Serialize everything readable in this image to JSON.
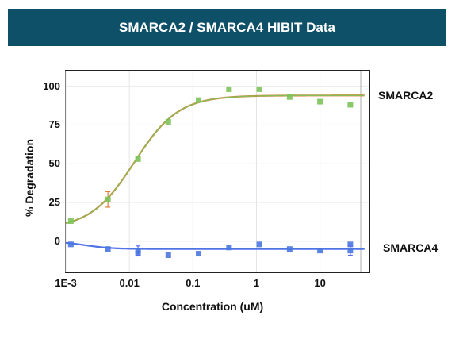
{
  "header": {
    "title": "SMARCA2 / SMARCA4 HIBIT Data",
    "bg_color": "#0e5068"
  },
  "chart_data": {
    "type": "scatter",
    "title": "SMARCA2 / SMARCA4 HIBIT Data",
    "xlabel": "Concentration (uM)",
    "ylabel": "% Degradation",
    "xscale": "log",
    "xlim": [
      0.001,
      60
    ],
    "ylim": [
      -20,
      110
    ],
    "x_ticks": [
      {
        "value": 0.001,
        "label": "1E-3"
      },
      {
        "value": 0.01,
        "label": "0.01"
      },
      {
        "value": 0.1,
        "label": "0.1"
      },
      {
        "value": 1,
        "label": "1"
      },
      {
        "value": 10,
        "label": "10"
      }
    ],
    "y_ticks": [
      {
        "value": 0,
        "label": "0"
      },
      {
        "value": 25,
        "label": "25"
      },
      {
        "value": 50,
        "label": "50"
      },
      {
        "value": 75,
        "label": "75"
      },
      {
        "value": 100,
        "label": "100"
      }
    ],
    "grid": true,
    "series": [
      {
        "name": "SMARCA2",
        "color": "#7cc35a",
        "fit_color": "#e07b39",
        "points": [
          {
            "x": 0.0012,
            "y": 13
          },
          {
            "x": 0.0046,
            "y": 27,
            "err": 5
          },
          {
            "x": 0.0137,
            "y": 53
          },
          {
            "x": 0.041,
            "y": 77
          },
          {
            "x": 0.123,
            "y": 91
          },
          {
            "x": 0.37,
            "y": 98
          },
          {
            "x": 1.11,
            "y": 98
          },
          {
            "x": 3.33,
            "y": 93
          },
          {
            "x": 10,
            "y": 90
          },
          {
            "x": 30,
            "y": 88
          }
        ],
        "fit": {
          "bottom": 8,
          "top": 94,
          "ec50": 0.012,
          "hill": 1.25
        }
      },
      {
        "name": "SMARCA4",
        "color": "#4a78e0",
        "fit_color": "#5b6cf0",
        "points": [
          {
            "x": 0.0012,
            "y": -2
          },
          {
            "x": 0.0046,
            "y": -5
          },
          {
            "x": 0.0137,
            "y": -8
          },
          {
            "x": 0.0137,
            "y": -6,
            "err": 3
          },
          {
            "x": 0.041,
            "y": -9
          },
          {
            "x": 0.123,
            "y": -8
          },
          {
            "x": 0.37,
            "y": -4
          },
          {
            "x": 1.11,
            "y": -2
          },
          {
            "x": 3.33,
            "y": -5
          },
          {
            "x": 10,
            "y": -6
          },
          {
            "x": 30,
            "y": -2
          },
          {
            "x": 30,
            "y": -6,
            "err": 3
          }
        ],
        "fit": {
          "bottom": 0,
          "top": -5,
          "ec50": 0.002,
          "hill": 2.0
        }
      }
    ]
  }
}
